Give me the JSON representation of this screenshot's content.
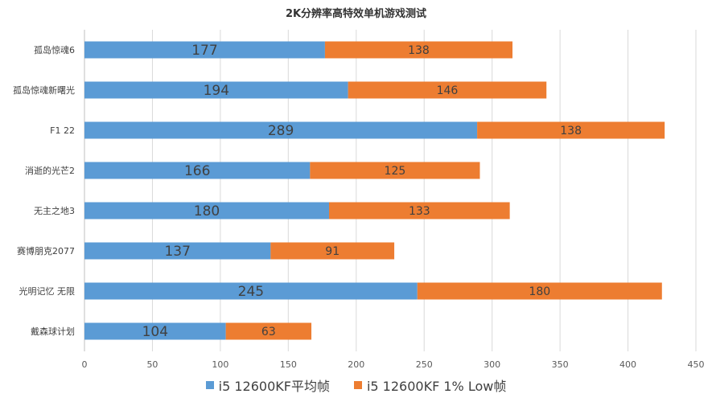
{
  "chart_data": {
    "type": "bar",
    "orientation": "horizontal",
    "stacked": true,
    "title": "2K分辨率高特效单机游戏测试",
    "categories": [
      "孤岛惊魂6",
      "孤岛惊魂新曙光",
      "F1 22",
      "消逝的光芒2",
      "无主之地3",
      "赛博朋克2077",
      "光明记忆 无限",
      "戴森球计划"
    ],
    "series": [
      {
        "name": "i5 12600KF平均帧",
        "color": "#5B9BD5",
        "values": [
          177,
          194,
          289,
          166,
          180,
          137,
          245,
          104
        ]
      },
      {
        "name": "i5 12600KF 1% Low帧",
        "color": "#ED7D31",
        "values": [
          138,
          146,
          138,
          125,
          133,
          91,
          180,
          63
        ]
      }
    ],
    "xlim": [
      0,
      450
    ],
    "xticks": [
      0,
      50,
      100,
      150,
      200,
      250,
      300,
      350,
      400,
      450
    ],
    "grid": true,
    "legend_position": "bottom",
    "data_labels": true
  }
}
